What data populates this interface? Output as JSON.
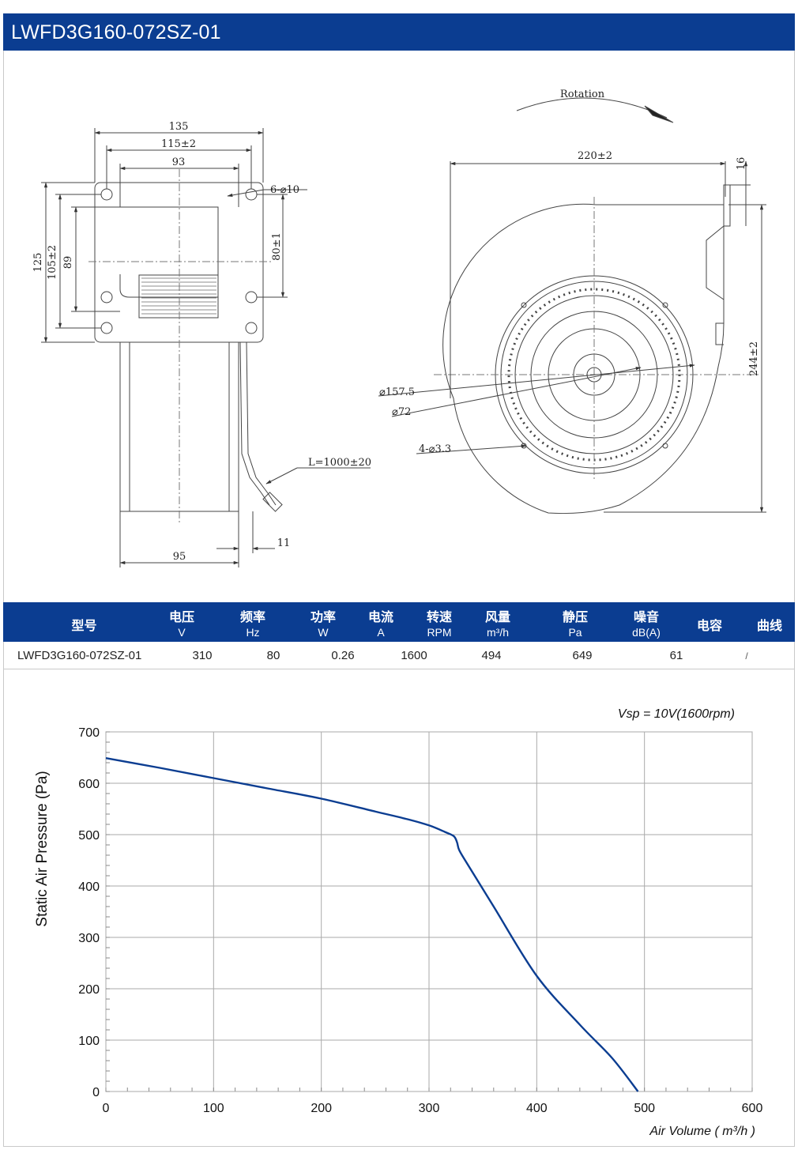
{
  "header": {
    "title": "LWFD3G160-072SZ-01"
  },
  "drawing": {
    "side_labels": {
      "w135": "135",
      "w115": "115±2",
      "w93": "93",
      "holes": "6-⌀10",
      "h125": "125",
      "h105": "105±2",
      "h89": "89",
      "h80": "80±1",
      "cable": "L=1000±20",
      "w95": "95",
      "w11": "11"
    },
    "front_labels": {
      "rotation": "Rotation",
      "w220": "220±2",
      "w16": "16",
      "h244": "244±2",
      "d157": "⌀157.5",
      "d72": "⌀72",
      "holes4": "4-⌀3.3"
    }
  },
  "spec_table": {
    "headers": [
      {
        "cn": "型号",
        "unit": ""
      },
      {
        "cn": "电压",
        "unit": "V"
      },
      {
        "cn": "频率",
        "unit": "Hz"
      },
      {
        "cn": "功率",
        "unit": "W"
      },
      {
        "cn": "电流",
        "unit": "A"
      },
      {
        "cn": "转速",
        "unit": "RPM"
      },
      {
        "cn": "风量",
        "unit": "m³/h"
      },
      {
        "cn": "静压",
        "unit": "Pa"
      },
      {
        "cn": "噪音",
        "unit": "dB(A)"
      },
      {
        "cn": "电容",
        "unit": ""
      },
      {
        "cn": "曲线",
        "unit": ""
      }
    ],
    "row": {
      "model": "LWFD3G160-072SZ-01",
      "voltage": "310",
      "frequency": "80",
      "power": "0.26",
      "current": "",
      "speed": "1600",
      "airflow": "494",
      "pressure": "649",
      "noise": "61",
      "capacitor": "/",
      "curve": ""
    }
  },
  "chart_data": {
    "type": "line",
    "title": "",
    "annotation": "Vsp = 10V(1600rpm)",
    "xlabel": "Air Volume ( m³/h )",
    "ylabel": "Static Air Pressure  (Pa)",
    "xlim": [
      0,
      600
    ],
    "ylim": [
      0,
      700
    ],
    "xticks": [
      "0",
      "100",
      "200",
      "300",
      "400",
      "500",
      "600"
    ],
    "yticks": [
      "0",
      "100",
      "200",
      "300",
      "400",
      "500",
      "600",
      "700"
    ],
    "grid": true,
    "series_color": "#0b3d91",
    "series": [
      {
        "x": [
          0,
          50,
          100,
          150,
          200,
          250,
          280,
          300,
          315,
          323,
          326,
          328,
          335,
          360,
          400,
          440,
          470,
          494
        ],
        "y": [
          649,
          630,
          610,
          590,
          570,
          545,
          530,
          518,
          505,
          497,
          485,
          470,
          445,
          360,
          225,
          130,
          65,
          0
        ]
      }
    ]
  }
}
